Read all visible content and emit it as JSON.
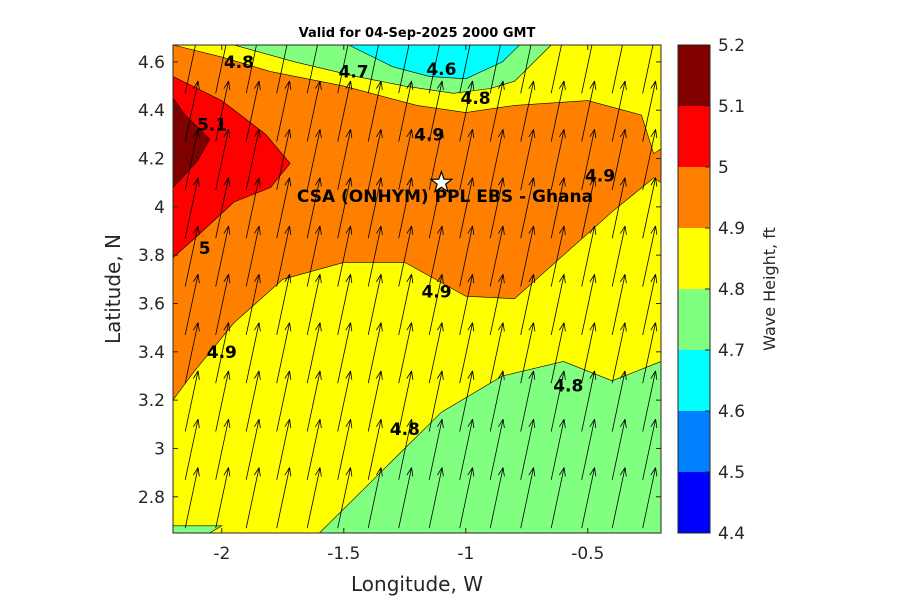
{
  "chart_data": {
    "type": "contour",
    "title": "Valid for 04-Sep-2025 2000 GMT",
    "xlabel": "Longitude, W",
    "ylabel": "Latitude, N",
    "xlim": [
      -2.2,
      -0.2
    ],
    "ylim": [
      2.65,
      4.67
    ],
    "xticks": [
      -2,
      -1.5,
      -1,
      -0.5
    ],
    "xtick_labels": [
      "-2",
      "-1.5",
      "-1",
      "-0.5"
    ],
    "yticks": [
      2.8,
      3,
      3.2,
      3.4,
      3.6,
      3.8,
      4,
      4.2,
      4.4,
      4.6
    ],
    "ytick_labels": [
      "2.8",
      "3",
      "3.2",
      "3.4",
      "3.6",
      "3.8",
      "4",
      "4.2",
      "4.4",
      "4.6"
    ],
    "colorbar": {
      "label": "Wave Height, ft",
      "levels": [
        4.4,
        4.5,
        4.6,
        4.7,
        4.8,
        4.9,
        5.0,
        5.1,
        5.2
      ],
      "tick_labels": [
        "4.4",
        "4.5",
        "4.6",
        "4.7",
        "4.8",
        "4.9",
        "5",
        "5.1",
        "5.2"
      ],
      "colors": [
        "#0000ff",
        "#0080ff",
        "#00ffff",
        "#80ff80",
        "#ffff00",
        "#ff8000",
        "#ff0000",
        "#800000"
      ]
    },
    "regions": [
      {
        "level": 4.8,
        "points": [
          [
            -2.2,
            2.65
          ],
          [
            -0.2,
            2.65
          ],
          [
            -0.2,
            4.67
          ],
          [
            -2.2,
            4.67
          ]
        ]
      },
      {
        "level": 4.7,
        "points": [
          [
            -1.6,
            2.65
          ],
          [
            -1.3,
            2.95
          ],
          [
            -1.1,
            3.15
          ],
          [
            -0.85,
            3.3
          ],
          [
            -0.6,
            3.36
          ],
          [
            -0.4,
            3.28
          ],
          [
            -0.2,
            3.36
          ],
          [
            -0.2,
            2.65
          ]
        ]
      },
      {
        "level": 4.7,
        "points": [
          [
            -2.2,
            2.65
          ],
          [
            -2.05,
            2.65
          ],
          [
            -2.0,
            2.68
          ],
          [
            -2.2,
            2.68
          ]
        ]
      },
      {
        "level": 4.9,
        "points": [
          [
            -2.2,
            3.2
          ],
          [
            -2.12,
            3.31
          ],
          [
            -1.95,
            3.52
          ],
          [
            -1.75,
            3.7
          ],
          [
            -1.5,
            3.77
          ],
          [
            -1.25,
            3.77
          ],
          [
            -1.0,
            3.63
          ],
          [
            -0.8,
            3.62
          ],
          [
            -0.6,
            3.8
          ],
          [
            -0.4,
            3.98
          ],
          [
            -0.23,
            4.12
          ],
          [
            -0.2,
            4.1
          ],
          [
            -0.2,
            4.24
          ],
          [
            -0.23,
            4.22
          ],
          [
            -0.28,
            4.38
          ],
          [
            -0.5,
            4.44
          ],
          [
            -0.8,
            4.42
          ],
          [
            -1.0,
            4.39
          ],
          [
            -1.2,
            4.42
          ],
          [
            -1.5,
            4.5
          ],
          [
            -1.8,
            4.56
          ],
          [
            -2.0,
            4.62
          ],
          [
            -2.2,
            4.67
          ]
        ]
      },
      {
        "level": 4.7,
        "points": [
          [
            -1.95,
            4.67
          ],
          [
            -1.7,
            4.6
          ],
          [
            -1.45,
            4.54
          ],
          [
            -1.25,
            4.5
          ],
          [
            -1.05,
            4.47
          ],
          [
            -0.9,
            4.49
          ],
          [
            -0.8,
            4.52
          ],
          [
            -0.65,
            4.67
          ]
        ]
      },
      {
        "level": 4.6,
        "points": [
          [
            -1.48,
            4.67
          ],
          [
            -1.3,
            4.58
          ],
          [
            -1.15,
            4.54
          ],
          [
            -1.0,
            4.53
          ],
          [
            -0.85,
            4.6
          ],
          [
            -0.78,
            4.67
          ]
        ]
      },
      {
        "level": 5.0,
        "points": [
          [
            -2.2,
            3.79
          ],
          [
            -2.1,
            3.88
          ],
          [
            -1.95,
            4.02
          ],
          [
            -1.8,
            4.08
          ],
          [
            -1.72,
            4.18
          ],
          [
            -1.82,
            4.3
          ],
          [
            -2.0,
            4.44
          ],
          [
            -2.2,
            4.54
          ]
        ]
      },
      {
        "level": 5.1,
        "points": [
          [
            -2.2,
            4.08
          ],
          [
            -2.1,
            4.19
          ],
          [
            -2.05,
            4.28
          ],
          [
            -2.15,
            4.38
          ],
          [
            -2.2,
            4.45
          ]
        ]
      }
    ],
    "contour_labels": [
      {
        "text": "4.8",
        "x": -1.93,
        "y": 4.6
      },
      {
        "text": "4.7",
        "x": -1.46,
        "y": 4.56
      },
      {
        "text": "4.6",
        "x": -1.1,
        "y": 4.57
      },
      {
        "text": "4.8",
        "x": -0.96,
        "y": 4.45
      },
      {
        "text": "4.9",
        "x": -1.15,
        "y": 4.3
      },
      {
        "text": "5.1",
        "x": -2.04,
        "y": 4.34
      },
      {
        "text": "4.9",
        "x": -0.45,
        "y": 4.13
      },
      {
        "text": "5",
        "x": -2.07,
        "y": 3.83
      },
      {
        "text": "4.9",
        "x": -1.12,
        "y": 3.65
      },
      {
        "text": "4.9",
        "x": -2.0,
        "y": 3.4
      },
      {
        "text": "4.8",
        "x": -0.58,
        "y": 3.26
      },
      {
        "text": "4.8",
        "x": -1.25,
        "y": 3.08
      }
    ],
    "site": {
      "label": "CSA (ONHYM) PPL EBS  - Ghana",
      "x": -1.1,
      "y": 4.1
    },
    "wave_direction_arrows": {
      "bearing_deg": 12,
      "x_step": 0.125,
      "y_step": 0.2
    }
  }
}
